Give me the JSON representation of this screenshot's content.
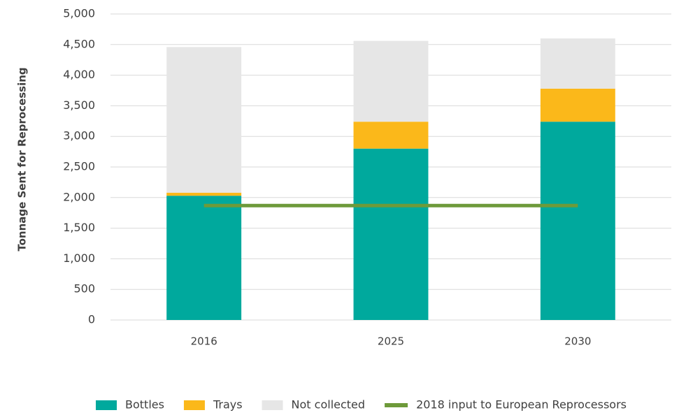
{
  "chart_data": {
    "type": "bar",
    "stacked": true,
    "y_label": "Tonnage Sent for Reprocessing",
    "categories": [
      "2016",
      "2025",
      "2030"
    ],
    "series": [
      {
        "name": "Bottles",
        "color": "#00a99d",
        "values": [
          2030,
          2800,
          3240
        ]
      },
      {
        "name": "Trays",
        "color": "#fbb81a",
        "values": [
          50,
          440,
          540
        ]
      },
      {
        "name": "Not collected",
        "color": "#e6e6e6",
        "values": [
          2380,
          1320,
          820
        ]
      },
      {
        "name": "2018 input to European Reprocessors",
        "color": "#6e9a3a",
        "type": "line",
        "values": [
          1870,
          1870,
          1870
        ]
      }
    ],
    "ylim": [
      0,
      5000
    ],
    "yticks": [
      0,
      500,
      {
        "value": 1000,
        "label": "1,000"
      },
      {
        "value": 1500,
        "label": "1,500"
      },
      {
        "value": 2000,
        "label": "2,000"
      },
      {
        "value": 2500,
        "label": "2,500"
      },
      {
        "value": 3000,
        "label": "3,000"
      },
      {
        "value": 3500,
        "label": "3,500"
      },
      {
        "value": 4000,
        "label": "4,000"
      },
      {
        "value": 4500,
        "label": "4,500"
      },
      {
        "value": 5000,
        "label": "5,000"
      }
    ],
    "grid": true,
    "legend": "bottom"
  }
}
